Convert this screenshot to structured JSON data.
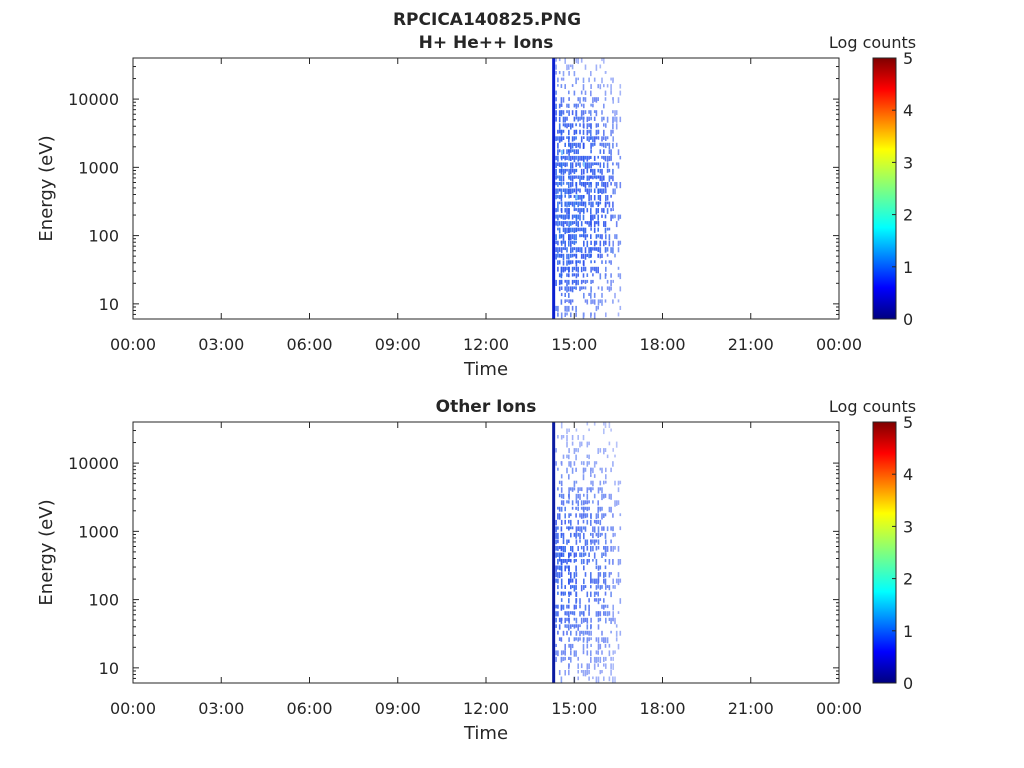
{
  "figure_title": "RPCICA140825.PNG",
  "chart_data": [
    {
      "type": "heatmap",
      "title": "H+ He++ Ions",
      "xlabel": "Time",
      "ylabel": "Energy (eV)",
      "yscale": "log",
      "ylim": [
        6,
        40000
      ],
      "xlim": [
        "00:00",
        "24:00"
      ],
      "xticks": [
        "00:00",
        "03:00",
        "06:00",
        "09:00",
        "12:00",
        "15:00",
        "18:00",
        "21:00",
        "00:00"
      ],
      "yticks": [
        10,
        100,
        1000,
        10000
      ],
      "ytick_labels": [
        "10",
        "100",
        "1000",
        "10000"
      ],
      "colorbar": {
        "label": "Log counts",
        "range": [
          0,
          5
        ],
        "ticks": [
          "0",
          "1",
          "2",
          "3",
          "4",
          "5"
        ],
        "colormap": "jet"
      },
      "data_window": {
        "start": "14:18",
        "end": "16:35"
      },
      "vertical_line": {
        "time": "14:18",
        "color": "#0a1fd0"
      },
      "activity": [
        {
          "time": "14:25",
          "level": 1.6
        },
        {
          "time": "14:40",
          "level": 1.4
        },
        {
          "time": "14:55",
          "level": 1.5
        },
        {
          "time": "15:10",
          "level": 1.3
        },
        {
          "time": "15:25",
          "level": 1.2
        },
        {
          "time": "15:40",
          "level": 1.2
        },
        {
          "time": "15:55",
          "level": 1.0
        },
        {
          "time": "16:10",
          "level": 0.9
        },
        {
          "time": "16:25",
          "level": 0.7
        }
      ]
    },
    {
      "type": "heatmap",
      "title": "Other Ions",
      "xlabel": "Time",
      "ylabel": "Energy (eV)",
      "yscale": "log",
      "ylim": [
        6,
        40000
      ],
      "xlim": [
        "00:00",
        "24:00"
      ],
      "xticks": [
        "00:00",
        "03:00",
        "06:00",
        "09:00",
        "12:00",
        "15:00",
        "18:00",
        "21:00",
        "00:00"
      ],
      "yticks": [
        10,
        100,
        1000,
        10000
      ],
      "ytick_labels": [
        "10",
        "100",
        "1000",
        "10000"
      ],
      "colorbar": {
        "label": "Log counts",
        "range": [
          0,
          5
        ],
        "ticks": [
          "0",
          "1",
          "2",
          "3",
          "4",
          "5"
        ],
        "colormap": "jet"
      },
      "data_window": {
        "start": "14:18",
        "end": "16:35"
      },
      "vertical_line": {
        "time": "14:18",
        "color": "#0a1aa0"
      },
      "activity": [
        {
          "time": "14:25",
          "level": 1.1
        },
        {
          "time": "14:40",
          "level": 1.0
        },
        {
          "time": "14:55",
          "level": 1.0
        },
        {
          "time": "15:10",
          "level": 0.9
        },
        {
          "time": "15:25",
          "level": 0.9
        },
        {
          "time": "15:40",
          "level": 0.8
        },
        {
          "time": "15:55",
          "level": 0.8
        },
        {
          "time": "16:10",
          "level": 0.7
        },
        {
          "time": "16:25",
          "level": 0.5
        }
      ]
    }
  ]
}
